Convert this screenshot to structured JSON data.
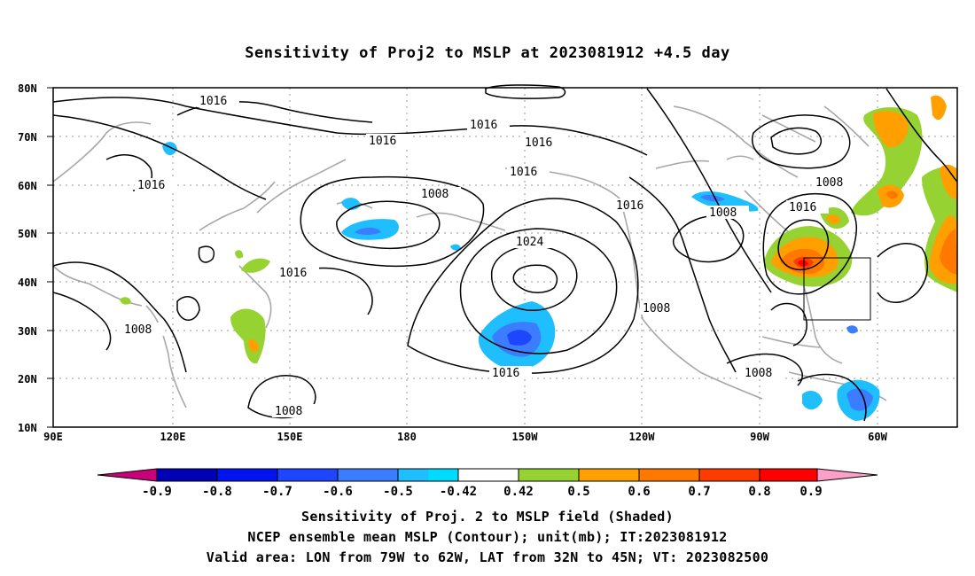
{
  "title": "Sensitivity of Proj2 to MSLP at 2023081912 +4.5 day",
  "map": {
    "lat_labels": [
      "80N",
      "70N",
      "60N",
      "50N",
      "40N",
      "30N",
      "20N",
      "10N"
    ],
    "lon_labels": [
      "90E",
      "120E",
      "150E",
      "180",
      "150W",
      "120W",
      "90W",
      "60W"
    ],
    "contour_labels": [
      "1016",
      "1016",
      "1016",
      "1016",
      "1016",
      "1008",
      "1016",
      "1016",
      "1008",
      "1016",
      "1024",
      "1008",
      "1016",
      "1008",
      "1016",
      "1008",
      "1008",
      "1008"
    ],
    "valid_box": {
      "lon": [
        "79W",
        "62W"
      ],
      "lat": [
        "32N",
        "45N"
      ]
    }
  },
  "colorbar": {
    "labels": [
      "-0.9",
      "-0.8",
      "-0.7",
      "-0.6",
      "-0.5",
      "-0.42",
      "0.42",
      "0.5",
      "0.6",
      "0.7",
      "0.8",
      "0.9"
    ],
    "colors": [
      "#c8007a",
      "#0000b4",
      "#0014f0",
      "#1e46ff",
      "#3c7dff",
      "#1ebeff",
      "#00dcff",
      "#ffffff",
      "#96d232",
      "#ffa000",
      "#ff7800",
      "#ff3c00",
      "#ff0000",
      "#ffa0c8"
    ]
  },
  "captions": {
    "line1": "Sensitivity of Proj. 2 to MSLP field (Shaded)",
    "line2": "NCEP ensemble mean MSLP (Contour); unit(mb); IT:2023081912",
    "line3": "Valid area: LON from 79W to 62W, LAT from 32N to 45N; VT: 2023082500"
  }
}
